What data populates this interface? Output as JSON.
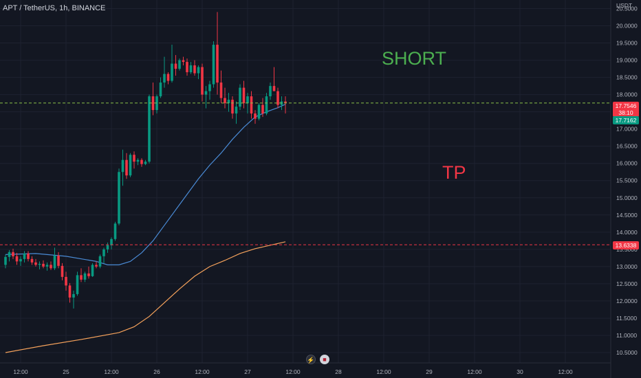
{
  "header": {
    "symbol": "APT / TetherUS, 1h, BINANCE"
  },
  "annotations": {
    "short": "SHORT",
    "tp": "TP"
  },
  "price_axis": {
    "currency": "USDT"
  },
  "labels": {
    "last_price": "17.7546",
    "countdown": "38:10",
    "ma_value": "17.7162",
    "tp_level": "13.6338"
  },
  "icons": [
    "lightning-icon",
    "us-flag-icon"
  ],
  "colors": {
    "background": "#131722",
    "up": "#089981",
    "down": "#f23645",
    "ma_fast": "#4a8bd6",
    "ma_slow": "#f7a35c",
    "short_text": "#4caf50",
    "tp_text": "#f23645"
  },
  "chart_data": {
    "type": "candlestick",
    "title": "APT / TetherUS, 1h, BINANCE",
    "y_unit": "USDT",
    "ylim": [
      10.2,
      20.75
    ],
    "y_ticks": [
      10.5,
      11.0,
      11.5,
      12.0,
      12.5,
      13.0,
      13.5,
      14.0,
      14.5,
      15.0,
      15.5,
      16.0,
      16.5,
      17.0,
      17.5,
      18.0,
      18.5,
      19.0,
      19.5,
      20.0,
      20.5
    ],
    "x_ticks": [
      "12:00",
      "25",
      "12:00",
      "26",
      "12:00",
      "27",
      "12:00",
      "28",
      "12:00",
      "29",
      "12:00",
      "30",
      "12:00"
    ],
    "x_start": "2022-10-24 08:00",
    "x_range_hours": 156,
    "grid": true,
    "candles": [
      [
        13.05,
        13.35,
        12.95,
        13.28
      ],
      [
        13.28,
        13.48,
        13.15,
        13.42
      ],
      [
        13.42,
        13.52,
        13.22,
        13.3
      ],
      [
        13.3,
        13.4,
        13.05,
        13.15
      ],
      [
        13.15,
        13.3,
        13.02,
        13.22
      ],
      [
        13.22,
        13.45,
        13.12,
        13.38
      ],
      [
        13.38,
        13.45,
        13.15,
        13.22
      ],
      [
        13.22,
        13.3,
        13.05,
        13.12
      ],
      [
        13.12,
        13.22,
        13.0,
        13.05
      ],
      [
        13.05,
        13.15,
        12.92,
        13.08
      ],
      [
        13.08,
        13.18,
        12.95,
        13.0
      ],
      [
        13.0,
        13.12,
        12.88,
        13.05
      ],
      [
        13.05,
        13.15,
        12.9,
        12.95
      ],
      [
        12.95,
        13.55,
        12.9,
        13.32
      ],
      [
        13.32,
        13.42,
        12.95,
        13.02
      ],
      [
        13.02,
        13.1,
        12.6,
        12.7
      ],
      [
        12.7,
        12.85,
        12.3,
        12.45
      ],
      [
        12.45,
        12.52,
        11.95,
        12.1
      ],
      [
        12.1,
        12.3,
        11.78,
        12.2
      ],
      [
        12.2,
        12.85,
        12.15,
        12.75
      ],
      [
        12.75,
        12.95,
        12.55,
        12.62
      ],
      [
        12.62,
        12.85,
        12.55,
        12.8
      ],
      [
        12.8,
        13.0,
        12.65,
        12.72
      ],
      [
        12.72,
        13.1,
        12.7,
        13.05
      ],
      [
        13.05,
        13.15,
        12.95,
        13.0
      ],
      [
        13.0,
        13.35,
        12.95,
        13.3
      ],
      [
        13.3,
        13.55,
        13.1,
        13.5
      ],
      [
        13.5,
        13.7,
        13.4,
        13.62
      ],
      [
        13.62,
        13.85,
        13.5,
        13.8
      ],
      [
        13.8,
        14.3,
        13.75,
        14.25
      ],
      [
        14.25,
        15.85,
        14.2,
        15.75
      ],
      [
        15.75,
        16.4,
        15.35,
        16.1
      ],
      [
        16.1,
        16.3,
        15.55,
        15.65
      ],
      [
        15.65,
        16.3,
        15.6,
        16.25
      ],
      [
        16.25,
        16.35,
        15.85,
        16.05
      ],
      [
        16.05,
        16.15,
        15.95,
        16.1
      ],
      [
        16.1,
        16.15,
        15.9,
        15.98
      ],
      [
        15.98,
        16.1,
        15.95,
        16.05
      ],
      [
        16.05,
        18.0,
        16.0,
        17.95
      ],
      [
        17.95,
        18.35,
        17.4,
        17.55
      ],
      [
        17.55,
        18.0,
        17.45,
        17.95
      ],
      [
        17.95,
        18.5,
        17.9,
        18.35
      ],
      [
        18.35,
        19.1,
        18.2,
        18.6
      ],
      [
        18.6,
        18.65,
        18.3,
        18.4
      ],
      [
        18.4,
        19.45,
        18.35,
        18.9
      ],
      [
        18.9,
        19.15,
        18.55,
        18.75
      ],
      [
        18.75,
        19.05,
        18.7,
        19.0
      ],
      [
        19.0,
        19.1,
        18.85,
        18.95
      ],
      [
        18.95,
        19.05,
        18.55,
        18.65
      ],
      [
        18.65,
        18.95,
        18.6,
        18.85
      ],
      [
        18.85,
        19.0,
        18.55,
        18.62
      ],
      [
        18.62,
        18.85,
        18.45,
        18.8
      ],
      [
        18.8,
        18.9,
        17.8,
        18.0
      ],
      [
        18.0,
        18.25,
        17.6,
        18.1
      ],
      [
        18.1,
        18.4,
        17.85,
        18.3
      ],
      [
        18.3,
        19.55,
        18.2,
        19.45
      ],
      [
        19.45,
        20.4,
        18.0,
        18.35
      ],
      [
        18.35,
        18.7,
        17.75,
        17.9
      ],
      [
        17.9,
        18.2,
        17.6,
        17.75
      ],
      [
        17.75,
        18.05,
        17.5,
        17.85
      ],
      [
        17.85,
        17.95,
        17.3,
        17.45
      ],
      [
        17.45,
        17.8,
        17.15,
        17.65
      ],
      [
        17.65,
        18.3,
        17.55,
        18.2
      ],
      [
        18.2,
        18.4,
        17.6,
        17.75
      ],
      [
        17.75,
        18.05,
        17.45,
        17.95
      ],
      [
        17.95,
        18.1,
        17.3,
        17.45
      ],
      [
        17.45,
        17.55,
        17.15,
        17.3
      ],
      [
        17.3,
        17.75,
        17.25,
        17.7
      ],
      [
        17.7,
        17.9,
        17.35,
        17.45
      ],
      [
        17.45,
        18.05,
        17.4,
        17.95
      ],
      [
        17.95,
        18.35,
        17.85,
        18.25
      ],
      [
        18.25,
        18.8,
        18.1,
        18.1
      ],
      [
        18.1,
        18.2,
        17.6,
        17.7
      ],
      [
        17.7,
        17.95,
        17.55,
        17.8
      ],
      [
        17.8,
        17.95,
        17.45,
        17.75
      ]
    ],
    "ma_fast": [
      [
        0,
        13.35
      ],
      [
        8,
        13.38
      ],
      [
        16,
        13.3
      ],
      [
        24,
        13.15
      ],
      [
        27,
        13.05
      ],
      [
        30,
        13.05
      ],
      [
        33,
        13.15
      ],
      [
        36,
        13.4
      ],
      [
        39,
        13.75
      ],
      [
        42,
        14.2
      ],
      [
        45,
        14.65
      ],
      [
        48,
        15.1
      ],
      [
        51,
        15.55
      ],
      [
        54,
        15.95
      ],
      [
        57,
        16.3
      ],
      [
        60,
        16.7
      ],
      [
        63,
        17.05
      ],
      [
        66,
        17.35
      ],
      [
        69,
        17.5
      ],
      [
        72,
        17.62
      ],
      [
        74,
        17.72
      ]
    ],
    "ma_slow": [
      [
        0,
        10.5
      ],
      [
        10,
        10.7
      ],
      [
        20,
        10.88
      ],
      [
        30,
        11.08
      ],
      [
        34,
        11.25
      ],
      [
        38,
        11.55
      ],
      [
        42,
        11.95
      ],
      [
        46,
        12.35
      ],
      [
        50,
        12.72
      ],
      [
        54,
        13.0
      ],
      [
        58,
        13.18
      ],
      [
        62,
        13.38
      ],
      [
        66,
        13.52
      ],
      [
        70,
        13.62
      ],
      [
        74,
        13.72
      ]
    ],
    "horizontal_lines": [
      {
        "value": 17.7546,
        "style": "dashed",
        "color": "#f23645"
      },
      {
        "value": 13.6338,
        "style": "dashed",
        "color": "#f23645"
      }
    ]
  }
}
